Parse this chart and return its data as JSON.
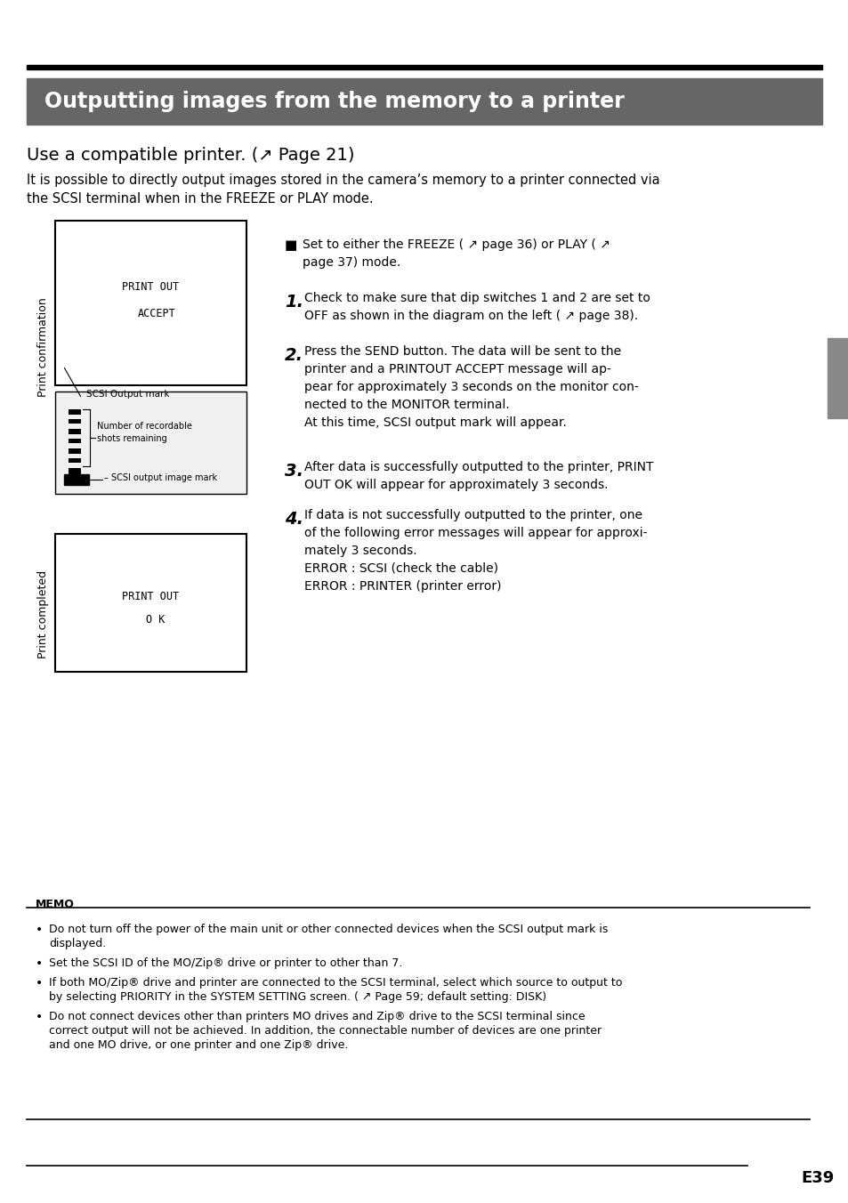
{
  "page_bg": "#ffffff",
  "top_line_color": "#000000",
  "header_bg": "#666666",
  "header_text": "Outputting images from the memory to a printer",
  "header_text_color": "#ffffff",
  "subtitle": "Use a compatible printer. (↗ Page 21)",
  "subtitle2": "It is possible to directly output images stored in the camera’s memory to a printer connected via\nthe SCSI terminal when in the FREEZE or PLAY mode.",
  "print_confirm_label": "Print confirmation",
  "print_complete_label": "Print completed",
  "box1_text1": "PRINT OUT",
  "box1_text2": "ACCEPT",
  "box2_text1": "PRINT OUT",
  "box2_text2": "O K",
  "scsi_output_mark": "SCSI Output mark",
  "number_recordable": "Number of recordable\nshots remaining",
  "scsi_output_image": "SCSI output image mark",
  "memo_title": "MEMO",
  "memo_bullets": [
    "Do not turn off the power of the main unit or other connected devices when the SCSI output mark is\ndisplayed.",
    "Set the SCSI ID of the MO/Zip® drive or printer to other than 7.",
    "If both MO/Zip® drive and printer are connected to the SCSI terminal, select which source to output to\nby selecting PRIORITY in the SYSTEM SETTING screen. ( ↗ Page 59; default setting: DISK)",
    "Do not connect devices other than printers MO drives and Zip® drive to the SCSI terminal since\ncorrect output will not be achieved. In addition, the connectable number of devices are one printer\nand one MO drive, or one printer and one Zip® drive."
  ],
  "page_num": "E39",
  "right_tab_color": "#888888"
}
